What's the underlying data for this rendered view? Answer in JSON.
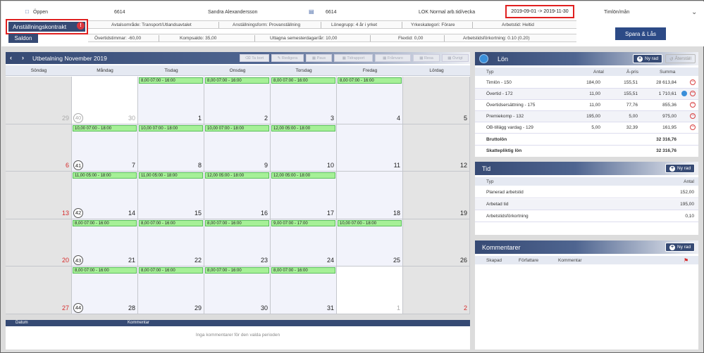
{
  "topbar": {
    "status": "Öppen",
    "id1": "6614",
    "employee_name": "Sandra Alexandersson",
    "id2": "6614",
    "schedule": "LOK Normal arb.tid/vecka",
    "period": "2019-09-01 -> 2019-11-30",
    "pay_type": "Timlön/mån",
    "contract_label": "Anställningskontrakt",
    "alert_count": "!",
    "saldon_label": "Saldon",
    "save_label": "Spara & Lås"
  },
  "contract_info": {
    "avtal": "Avtalsområde: Transport/Utlandsavtalet",
    "anst_form": "Anställningsform: Provanställning",
    "lonegrupp": "Lönegrupp: 4 år i yrket",
    "yrke": "Yrkeskategori: Förare",
    "arbetstid": "Arbetstid: Heltid"
  },
  "saldon": {
    "overtid": "Övertidstimmar: -60,00",
    "komp": "Kompsaldo: 35,00",
    "semester": "Uttagna semesterdagar/år: 10,00",
    "flextid": "Flextid: 0,00",
    "atf": "Arbetstidsförkortning: 0.10 (0.20)"
  },
  "calendar": {
    "title": "Utbetalning November 2019",
    "toolbar": [
      "Ta bort",
      "Redigera",
      "Paus",
      "Tidrapport",
      "Frånvaro",
      "Resa",
      "Övrigt"
    ],
    "weekdays": [
      "Söndag",
      "Måndag",
      "Tisdag",
      "Onsdag",
      "Torsdag",
      "Fredag",
      "Lördag"
    ],
    "weeks": [
      {
        "week": "40",
        "week_gray": true,
        "days": [
          {
            "d": "29",
            "style": "gray",
            "kind": "weekend",
            "shift": ""
          },
          {
            "d": "30",
            "style": "gray",
            "kind": "outside",
            "shift": ""
          },
          {
            "d": "1",
            "style": "",
            "kind": "",
            "shift": "8,00 07:00 - 16:00"
          },
          {
            "d": "2",
            "style": "",
            "kind": "",
            "shift": "8,00 07:00 - 16:00"
          },
          {
            "d": "3",
            "style": "",
            "kind": "",
            "shift": "8,00 07:00 - 16:00"
          },
          {
            "d": "4",
            "style": "",
            "kind": "",
            "shift": "8,00 07:00 - 16:00"
          },
          {
            "d": "5",
            "style": "",
            "kind": "weekend",
            "shift": ""
          }
        ]
      },
      {
        "week": "41",
        "week_gray": false,
        "days": [
          {
            "d": "6",
            "style": "red",
            "kind": "weekend",
            "shift": ""
          },
          {
            "d": "7",
            "style": "",
            "kind": "",
            "shift": "10,00 07:00 - 18:00"
          },
          {
            "d": "8",
            "style": "",
            "kind": "",
            "shift": "10,00 07:00 - 18:00"
          },
          {
            "d": "9",
            "style": "",
            "kind": "",
            "shift": "10,00 07:00 - 18:00"
          },
          {
            "d": "10",
            "style": "",
            "kind": "",
            "shift": "12,00 05:00 - 18:00"
          },
          {
            "d": "11",
            "style": "",
            "kind": "",
            "shift": ""
          },
          {
            "d": "12",
            "style": "",
            "kind": "weekend",
            "shift": ""
          }
        ]
      },
      {
        "week": "42",
        "week_gray": false,
        "days": [
          {
            "d": "13",
            "style": "red",
            "kind": "weekend",
            "shift": ""
          },
          {
            "d": "14",
            "style": "",
            "kind": "",
            "shift": "11,00 05:00 - 18:00"
          },
          {
            "d": "15",
            "style": "",
            "kind": "",
            "shift": "11,00 05:00 - 18:00"
          },
          {
            "d": "16",
            "style": "",
            "kind": "",
            "shift": "12,00 05:00 - 18:00"
          },
          {
            "d": "17",
            "style": "",
            "kind": "",
            "shift": "12,00 05:00 - 18:00"
          },
          {
            "d": "18",
            "style": "",
            "kind": "",
            "shift": ""
          },
          {
            "d": "19",
            "style": "",
            "kind": "weekend",
            "shift": ""
          }
        ]
      },
      {
        "week": "43",
        "week_gray": false,
        "days": [
          {
            "d": "20",
            "style": "red",
            "kind": "weekend",
            "shift": ""
          },
          {
            "d": "21",
            "style": "",
            "kind": "",
            "shift": "8,00 07:00 - 16:00"
          },
          {
            "d": "22",
            "style": "",
            "kind": "",
            "shift": "8,00 07:00 - 16:00"
          },
          {
            "d": "23",
            "style": "",
            "kind": "",
            "shift": "8,00 07:00 - 16:00"
          },
          {
            "d": "24",
            "style": "",
            "kind": "",
            "shift": "9,00 07:00 - 17:00"
          },
          {
            "d": "25",
            "style": "",
            "kind": "",
            "shift": "10,00 07:00 - 18:00"
          },
          {
            "d": "26",
            "style": "",
            "kind": "weekend",
            "shift": ""
          }
        ]
      },
      {
        "week": "44",
        "week_gray": false,
        "days": [
          {
            "d": "27",
            "style": "red",
            "kind": "weekend",
            "shift": ""
          },
          {
            "d": "28",
            "style": "",
            "kind": "",
            "shift": "8,00 07:00 - 16:00"
          },
          {
            "d": "29",
            "style": "",
            "kind": "",
            "shift": "8,00 07:00 - 16:00"
          },
          {
            "d": "30",
            "style": "",
            "kind": "",
            "shift": "8,00 07:00 - 16:00"
          },
          {
            "d": "31",
            "style": "",
            "kind": "",
            "shift": "8,00 07:00 - 16:00"
          },
          {
            "d": "1",
            "style": "gray",
            "kind": "outside",
            "shift": ""
          },
          {
            "d": "2",
            "style": "red",
            "kind": "weekend",
            "shift": ""
          }
        ]
      }
    ]
  },
  "comments_bottom": {
    "col_date": "Datum",
    "col_comment": "Kommentar",
    "empty": "Inga kommentarer för den valda perioden"
  },
  "lon": {
    "title": "Lön",
    "new_row": "Ny rad",
    "reset": "Återställ",
    "cols": [
      "Typ",
      "Antal",
      "À-pris",
      "Summa"
    ],
    "rows": [
      {
        "typ": "Timlön - 150",
        "antal": "184,00",
        "apris": "155,51",
        "summa": "28 613,84",
        "info": false
      },
      {
        "typ": "Övertid - 172",
        "antal": "11,00",
        "apris": "155,51",
        "summa": "1 710,61",
        "info": true
      },
      {
        "typ": "Övertidsersättning - 175",
        "antal": "11,00",
        "apris": "77,76",
        "summa": "855,36",
        "info": false
      },
      {
        "typ": "Premiekomp - 132",
        "antal": "195,00",
        "apris": "5,00",
        "summa": "975,00",
        "info": false
      },
      {
        "typ": "OB-tillägg vardag - 129",
        "antal": "5,00",
        "apris": "32,39",
        "summa": "161,95",
        "info": false
      }
    ],
    "brutto_label": "Bruttolön",
    "brutto_value": "32 316,76",
    "skatt_label": "Skattepliktig lön",
    "skatt_value": "32 316,76"
  },
  "tid": {
    "title": "Tid",
    "new_row": "Ny rad",
    "cols": [
      "Typ",
      "Antal"
    ],
    "rows": [
      {
        "typ": "Planerad arbetstid",
        "antal": "152,00"
      },
      {
        "typ": "Arbetad tid",
        "antal": "195,00"
      },
      {
        "typ": "Arbetstidsförkortning",
        "antal": "0,10"
      }
    ]
  },
  "kommentarer": {
    "title": "Kommentarer",
    "new_row": "Ny rad",
    "cols": [
      "Skapad",
      "Författare",
      "Kommentar"
    ]
  }
}
